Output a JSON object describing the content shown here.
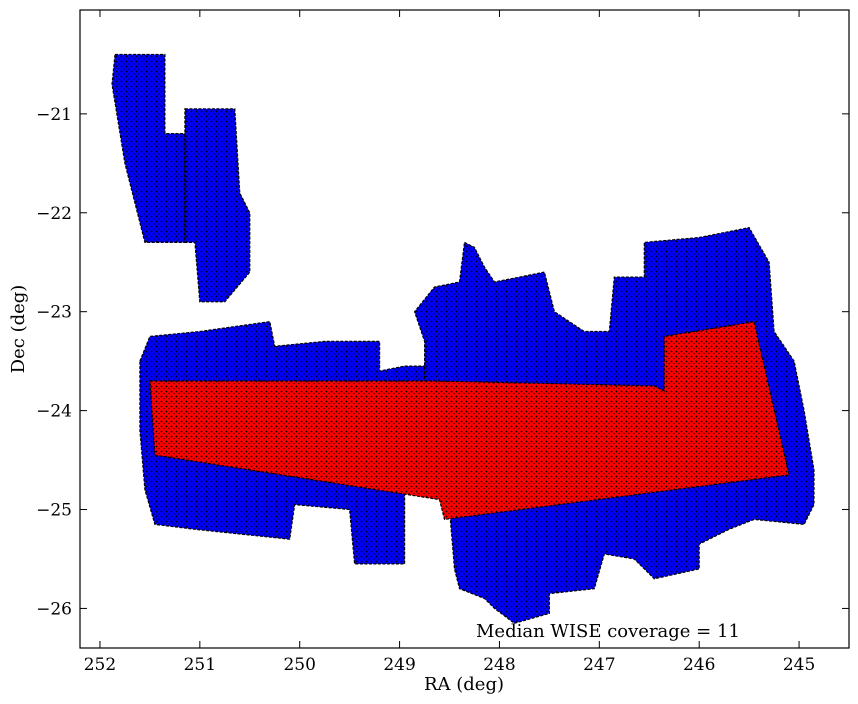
{
  "chart_data": {
    "type": "scatter",
    "title": "",
    "xlabel": "RA (deg)",
    "ylabel": "Dec (deg)",
    "xlim": [
      252.2,
      244.5
    ],
    "ylim": [
      -26.4,
      -19.95
    ],
    "x_inverted": true,
    "xticks": [
      252,
      251,
      250,
      249,
      248,
      247,
      246,
      245
    ],
    "xtick_labels": [
      "252",
      "251",
      "250",
      "249",
      "248",
      "247",
      "246",
      "245"
    ],
    "yticks": [
      -21,
      -22,
      -23,
      -24,
      -25,
      -26
    ],
    "ytick_labels": [
      "−21",
      "−22",
      "−23",
      "−24",
      "−25",
      "−26"
    ],
    "grid": false,
    "annotation": "Median WISE coverage = 11",
    "colors": {
      "blue_points": "#0000ff",
      "red_points": "#ff0000",
      "edge": "#000000"
    },
    "series": [
      {
        "color": "#0000ff",
        "footprint_regions": [
          [
            [
              251.85,
              -20.4
            ],
            [
              251.65,
              -20.4
            ],
            [
              251.35,
              -20.4
            ],
            [
              251.35,
              -21.2
            ],
            [
              251.15,
              -21.2
            ],
            [
              251.15,
              -22.3
            ],
            [
              251.55,
              -22.3
            ],
            [
              251.75,
              -21.5
            ],
            [
              251.88,
              -20.7
            ]
          ],
          [
            [
              251.15,
              -20.95
            ],
            [
              250.65,
              -20.95
            ],
            [
              250.6,
              -21.8
            ],
            [
              250.5,
              -22.0
            ],
            [
              250.5,
              -22.6
            ],
            [
              250.75,
              -22.9
            ],
            [
              251.0,
              -22.9
            ],
            [
              251.05,
              -22.3
            ],
            [
              251.15,
              -22.3
            ]
          ],
          [
            [
              251.6,
              -23.5
            ],
            [
              251.5,
              -23.25
            ],
            [
              251.0,
              -23.2
            ],
            [
              250.3,
              -23.1
            ],
            [
              250.25,
              -23.35
            ],
            [
              249.75,
              -23.3
            ],
            [
              249.2,
              -23.3
            ],
            [
              249.2,
              -23.6
            ],
            [
              248.95,
              -23.55
            ],
            [
              248.7,
              -23.55
            ],
            [
              248.7,
              -23.7
            ],
            [
              248.65,
              -24.2
            ],
            [
              248.55,
              -24.6
            ],
            [
              248.4,
              -24.7
            ],
            [
              248.95,
              -24.75
            ],
            [
              248.95,
              -25.55
            ],
            [
              249.45,
              -25.55
            ],
            [
              249.5,
              -25.0
            ],
            [
              250.05,
              -24.95
            ],
            [
              250.1,
              -25.3
            ],
            [
              251.05,
              -25.2
            ],
            [
              251.45,
              -25.15
            ],
            [
              251.55,
              -24.8
            ],
            [
              251.6,
              -24.2
            ]
          ],
          [
            [
              248.35,
              -22.3
            ],
            [
              248.25,
              -22.35
            ],
            [
              248.15,
              -22.55
            ],
            [
              248.05,
              -22.7
            ],
            [
              247.8,
              -22.65
            ],
            [
              247.55,
              -22.6
            ],
            [
              247.45,
              -23.0
            ],
            [
              247.15,
              -23.2
            ],
            [
              246.9,
              -23.2
            ],
            [
              246.85,
              -22.65
            ],
            [
              246.55,
              -22.65
            ],
            [
              246.55,
              -22.3
            ],
            [
              246.0,
              -22.25
            ],
            [
              245.5,
              -22.15
            ],
            [
              245.3,
              -22.5
            ],
            [
              245.25,
              -23.2
            ],
            [
              245.05,
              -23.5
            ],
            [
              244.95,
              -24.0
            ],
            [
              244.85,
              -24.6
            ],
            [
              244.85,
              -24.95
            ],
            [
              244.95,
              -25.15
            ],
            [
              245.45,
              -25.1
            ],
            [
              245.7,
              -25.2
            ],
            [
              246.0,
              -25.35
            ],
            [
              246.0,
              -25.6
            ],
            [
              246.45,
              -25.7
            ],
            [
              246.65,
              -25.5
            ],
            [
              246.95,
              -25.45
            ],
            [
              247.05,
              -25.8
            ],
            [
              247.5,
              -25.85
            ],
            [
              247.5,
              -26.05
            ],
            [
              247.85,
              -26.15
            ],
            [
              248.05,
              -26.0
            ],
            [
              248.15,
              -25.9
            ],
            [
              248.4,
              -25.8
            ],
            [
              248.45,
              -25.6
            ],
            [
              248.5,
              -25.0
            ],
            [
              248.6,
              -24.1
            ],
            [
              248.75,
              -23.8
            ],
            [
              248.75,
              -23.3
            ],
            [
              248.85,
              -23.0
            ],
            [
              248.65,
              -22.75
            ],
            [
              248.4,
              -22.7
            ]
          ]
        ]
      },
      {
        "color": "#ff0000",
        "footprint_regions": [
          [
            [
              251.5,
              -23.7
            ],
            [
              248.65,
              -23.7
            ],
            [
              246.45,
              -23.75
            ],
            [
              246.35,
              -23.8
            ],
            [
              246.35,
              -23.25
            ],
            [
              245.45,
              -23.1
            ],
            [
              245.1,
              -24.65
            ],
            [
              248.55,
              -25.1
            ],
            [
              248.6,
              -24.9
            ],
            [
              251.45,
              -24.45
            ]
          ]
        ]
      }
    ]
  }
}
